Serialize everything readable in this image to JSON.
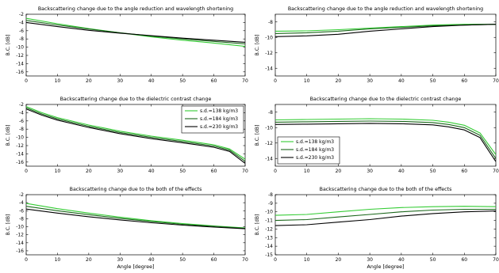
{
  "chart_data": [
    {
      "type": "line",
      "title": "Backscattering change due to the angle reduction and wavelength shortening",
      "xlabel": "",
      "ylabel": "B.C. [dB]",
      "xlim": [
        0,
        70
      ],
      "ylim": [
        -17,
        -2
      ],
      "xticks": [
        0,
        10,
        20,
        30,
        40,
        50,
        60,
        70
      ],
      "yticks": [
        -2,
        -4,
        -6,
        -8,
        -10,
        -12,
        -14,
        -16
      ],
      "grid": false,
      "legend": null,
      "series": [
        {
          "color": "#33cc33",
          "x": [
            0,
            10,
            20,
            30,
            40,
            50,
            60,
            70
          ],
          "y": [
            -3.0,
            -4.3,
            -5.5,
            -6.5,
            -7.5,
            -8.3,
            -9.0,
            -9.8
          ]
        },
        {
          "color": "#1a661a",
          "x": [
            0,
            10,
            20,
            30,
            40,
            50,
            60,
            70
          ],
          "y": [
            -3.5,
            -4.6,
            -5.6,
            -6.5,
            -7.3,
            -8.0,
            -8.6,
            -9.2
          ]
        },
        {
          "color": "#000000",
          "x": [
            0,
            10,
            20,
            30,
            40,
            50,
            60,
            70
          ],
          "y": [
            -4.0,
            -5.0,
            -5.9,
            -6.6,
            -7.2,
            -7.8,
            -8.3,
            -8.8
          ]
        }
      ]
    },
    {
      "type": "line",
      "title": "Backscattering change due to the angle reduction and wavelength shortening",
      "xlabel": "",
      "ylabel": "B.C. [dB]",
      "xlim": [
        0,
        70
      ],
      "ylim": [
        -15,
        -7
      ],
      "xticks": [
        0,
        10,
        20,
        30,
        40,
        50,
        60,
        70
      ],
      "yticks": [
        -8,
        -10,
        -12,
        -14
      ],
      "grid": false,
      "legend": null,
      "series": [
        {
          "color": "#33cc33",
          "x": [
            0,
            10,
            20,
            30,
            40,
            50,
            60,
            70
          ],
          "y": [
            -9.2,
            -9.15,
            -9.0,
            -8.8,
            -8.6,
            -8.4,
            -8.3,
            -8.3
          ]
        },
        {
          "color": "#1a661a",
          "x": [
            0,
            10,
            20,
            30,
            40,
            50,
            60,
            70
          ],
          "y": [
            -9.5,
            -9.4,
            -9.2,
            -8.9,
            -8.7,
            -8.5,
            -8.4,
            -8.3
          ]
        },
        {
          "color": "#000000",
          "x": [
            0,
            10,
            20,
            30,
            40,
            50,
            60,
            70
          ],
          "y": [
            -9.9,
            -9.8,
            -9.6,
            -9.2,
            -8.9,
            -8.6,
            -8.4,
            -8.3
          ]
        }
      ]
    },
    {
      "type": "line",
      "title": "Backscattering change due to the dielectric contrast change",
      "xlabel": "",
      "ylabel": "B.C. [dB]",
      "xlim": [
        0,
        70
      ],
      "ylim": [
        -17,
        -2
      ],
      "xticks": [
        0,
        10,
        20,
        30,
        40,
        50,
        60,
        70
      ],
      "yticks": [
        -2,
        -4,
        -6,
        -8,
        -10,
        -12,
        -14,
        -16
      ],
      "grid": false,
      "legend": "top-right",
      "series": [
        {
          "name": "s.d.=138 kg/m3",
          "color": "#33cc33",
          "x": [
            0,
            5,
            10,
            20,
            30,
            40,
            50,
            60,
            65,
            70
          ],
          "y": [
            -2.5,
            -4.0,
            -5.2,
            -7.0,
            -8.5,
            -9.7,
            -10.7,
            -11.8,
            -12.8,
            -15.3
          ]
        },
        {
          "name": "s.d.=184 kg/m3",
          "color": "#1a661a",
          "x": [
            0,
            5,
            10,
            20,
            30,
            40,
            50,
            60,
            65,
            70
          ],
          "y": [
            -2.8,
            -4.3,
            -5.5,
            -7.3,
            -8.8,
            -10.0,
            -11.0,
            -12.1,
            -13.1,
            -15.8
          ]
        },
        {
          "name": "s.d.=230 kg/m3",
          "color": "#000000",
          "x": [
            0,
            5,
            10,
            20,
            30,
            40,
            50,
            60,
            65,
            70
          ],
          "y": [
            -3.1,
            -4.6,
            -5.8,
            -7.6,
            -9.1,
            -10.3,
            -11.3,
            -12.4,
            -13.4,
            -16.3
          ]
        }
      ]
    },
    {
      "type": "line",
      "title": "Backscattering change due to the dielectric contrast change",
      "xlabel": "",
      "ylabel": "B.C. [dB]",
      "xlim": [
        0,
        70
      ],
      "ylim": [
        -15,
        -7
      ],
      "xticks": [
        0,
        10,
        20,
        30,
        40,
        50,
        60,
        70
      ],
      "yticks": [
        -8,
        -10,
        -12,
        -14
      ],
      "grid": false,
      "legend": "bottom-left",
      "series": [
        {
          "name": "s.d.=138 kg/m3",
          "color": "#33cc33",
          "x": [
            0,
            10,
            20,
            30,
            40,
            50,
            55,
            60,
            65,
            70
          ],
          "y": [
            -9.0,
            -8.95,
            -8.9,
            -8.85,
            -8.9,
            -9.05,
            -9.3,
            -9.7,
            -10.7,
            -13.5
          ]
        },
        {
          "name": "s.d.=184 kg/m3",
          "color": "#1a661a",
          "x": [
            0,
            10,
            20,
            30,
            40,
            50,
            55,
            60,
            65,
            70
          ],
          "y": [
            -9.3,
            -9.25,
            -9.2,
            -9.15,
            -9.2,
            -9.35,
            -9.6,
            -10.0,
            -11.0,
            -14.0
          ]
        },
        {
          "name": "s.d.=230 kg/m3",
          "color": "#000000",
          "x": [
            0,
            10,
            20,
            30,
            40,
            50,
            55,
            60,
            65,
            70
          ],
          "y": [
            -9.6,
            -9.55,
            -9.5,
            -9.45,
            -9.5,
            -9.65,
            -9.9,
            -10.3,
            -11.3,
            -14.4
          ]
        }
      ]
    },
    {
      "type": "line",
      "title": "Backscattering change due to the both of the effects",
      "xlabel": "Angle [degree]",
      "ylabel": "B.C. [dB]",
      "xlim": [
        0,
        70
      ],
      "ylim": [
        -17,
        -2
      ],
      "xticks": [
        0,
        10,
        20,
        30,
        40,
        50,
        60,
        70
      ],
      "yticks": [
        -2,
        -4,
        -6,
        -8,
        -10,
        -12,
        -14,
        -16
      ],
      "grid": false,
      "legend": null,
      "series": [
        {
          "color": "#33cc33",
          "x": [
            0,
            10,
            20,
            30,
            40,
            50,
            60,
            70
          ],
          "y": [
            -4.2,
            -5.5,
            -6.6,
            -7.6,
            -8.5,
            -9.2,
            -9.8,
            -10.3
          ]
        },
        {
          "color": "#1a661a",
          "x": [
            0,
            10,
            20,
            30,
            40,
            50,
            60,
            70
          ],
          "y": [
            -4.9,
            -6.0,
            -7.0,
            -7.9,
            -8.7,
            -9.4,
            -9.9,
            -10.4
          ]
        },
        {
          "color": "#000000",
          "x": [
            0,
            10,
            20,
            30,
            40,
            50,
            60,
            70
          ],
          "y": [
            -5.6,
            -6.6,
            -7.5,
            -8.3,
            -9.0,
            -9.6,
            -10.1,
            -10.5
          ]
        }
      ]
    },
    {
      "type": "line",
      "title": "Backscattering change due to the both of the effects",
      "xlabel": "Angle [degree]",
      "ylabel": "B.C. [dB]",
      "xlim": [
        0,
        70
      ],
      "ylim": [
        -15,
        -8
      ],
      "xticks": [
        0,
        10,
        20,
        30,
        40,
        50,
        60,
        70
      ],
      "yticks": [
        -8,
        -9,
        -10,
        -11,
        -12,
        -13,
        -14,
        -15
      ],
      "grid": false,
      "legend": null,
      "series": [
        {
          "color": "#33cc33",
          "x": [
            0,
            10,
            20,
            30,
            40,
            50,
            60,
            70
          ],
          "y": [
            -10.4,
            -10.3,
            -10.0,
            -9.7,
            -9.5,
            -9.4,
            -9.35,
            -9.4
          ]
        },
        {
          "color": "#1a661a",
          "x": [
            0,
            10,
            20,
            30,
            40,
            50,
            60,
            70
          ],
          "y": [
            -11.0,
            -10.9,
            -10.6,
            -10.3,
            -10.0,
            -9.8,
            -9.7,
            -9.7
          ]
        },
        {
          "color": "#000000",
          "x": [
            0,
            10,
            20,
            30,
            40,
            50,
            60,
            70
          ],
          "y": [
            -11.6,
            -11.5,
            -11.2,
            -10.9,
            -10.5,
            -10.2,
            -10.0,
            -9.9
          ]
        }
      ]
    }
  ]
}
